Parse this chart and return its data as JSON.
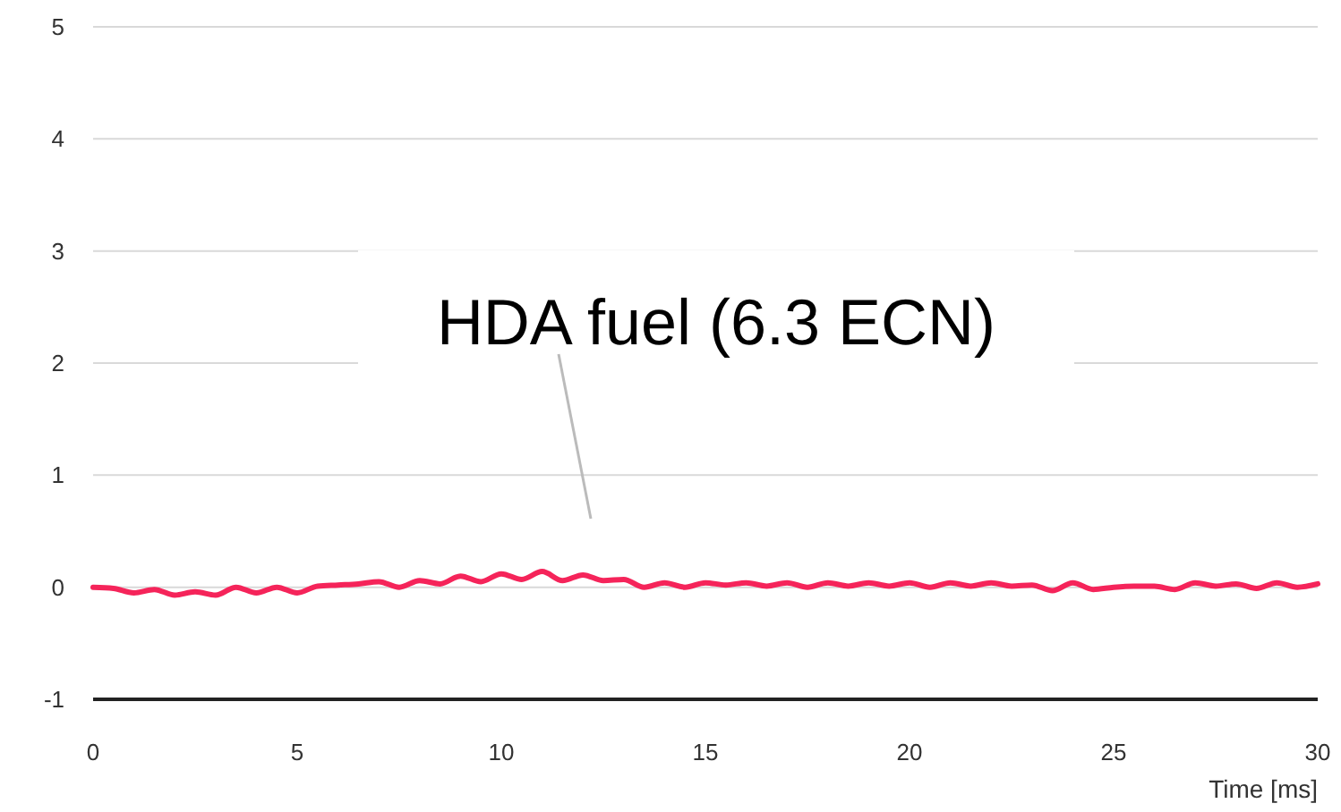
{
  "chart_data": {
    "type": "line",
    "xlabel": "Time [ms]",
    "x": [
      0,
      0.5,
      1,
      1.5,
      2,
      2.5,
      3,
      3.5,
      4,
      4.5,
      5,
      5.5,
      6,
      6.5,
      7,
      7.5,
      8,
      8.5,
      9,
      9.5,
      10,
      10.5,
      11,
      11.5,
      12,
      12.5,
      13,
      13.5,
      14,
      14.5,
      15,
      15.5,
      16,
      16.5,
      17,
      17.5,
      18,
      18.5,
      19,
      19.5,
      20,
      20.5,
      21,
      21.5,
      22,
      22.5,
      23,
      23.5,
      24,
      24.5,
      25,
      25.5,
      26,
      26.5,
      27,
      27.5,
      28,
      28.5,
      29,
      29.5,
      30
    ],
    "series": [
      {
        "color": "#f5245a",
        "values": [
          0,
          -0.01,
          -0.05,
          -0.02,
          -0.07,
          -0.04,
          -0.07,
          0,
          -0.05,
          0,
          -0.05,
          0.01,
          0.02,
          0.03,
          0.05,
          0,
          0.06,
          0.03,
          0.1,
          0.05,
          0.12,
          0.07,
          0.14,
          0.06,
          0.11,
          0.06,
          0.07,
          0,
          0.04,
          0,
          0.04,
          0.02,
          0.04,
          0.01,
          0.04,
          0,
          0.04,
          0.01,
          0.04,
          0.01,
          0.04,
          0,
          0.04,
          0.01,
          0.04,
          0.01,
          0.02,
          -0.03,
          0.04,
          -0.02,
          0,
          0.01,
          0.01,
          -0.02,
          0.04,
          0.01,
          0.03,
          -0.01,
          0.04,
          0,
          0.03
        ]
      }
    ],
    "xlim": [
      0,
      30
    ],
    "xticks": [
      0,
      5,
      10,
      15,
      20,
      25,
      30
    ],
    "ylim": [
      -1,
      5
    ],
    "yticks": [
      -1,
      0,
      1,
      2,
      3,
      4,
      5
    ],
    "grid": "y",
    "marker": "none",
    "line_style": "solid",
    "annotations": [
      "HDA fuel (6.3 ECN)"
    ]
  }
}
